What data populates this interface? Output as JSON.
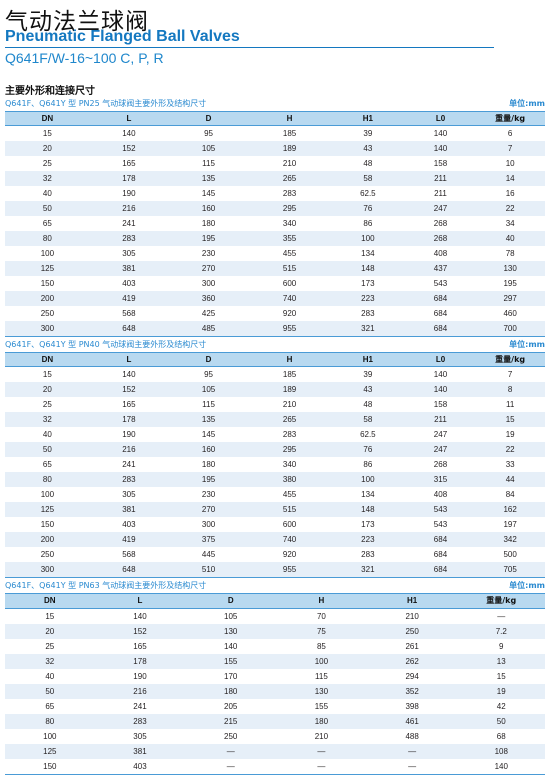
{
  "header": {
    "title_cn": "气动法兰球阀",
    "title_en": "Pneumatic Flanged Ball Valves",
    "model": "Q641F/W-16~100 C, P, R"
  },
  "section_heading": "主要外形和连接尺寸",
  "unit_label": "单位:mm",
  "tables": [
    {
      "caption": "Q641F、Q641Y 型 PN25 气动球阀主要外形及结构尺寸",
      "headers": [
        "DN",
        "L",
        "D",
        "H",
        "H1",
        "L0",
        "重量/kg"
      ],
      "rows": [
        [
          "15",
          "140",
          "95",
          "185",
          "39",
          "140",
          "6"
        ],
        [
          "20",
          "152",
          "105",
          "189",
          "43",
          "140",
          "7"
        ],
        [
          "25",
          "165",
          "115",
          "210",
          "48",
          "158",
          "10"
        ],
        [
          "32",
          "178",
          "135",
          "265",
          "58",
          "211",
          "14"
        ],
        [
          "40",
          "190",
          "145",
          "283",
          "62.5",
          "211",
          "16"
        ],
        [
          "50",
          "216",
          "160",
          "295",
          "76",
          "247",
          "22"
        ],
        [
          "65",
          "241",
          "180",
          "340",
          "86",
          "268",
          "34"
        ],
        [
          "80",
          "283",
          "195",
          "355",
          "100",
          "268",
          "40"
        ],
        [
          "100",
          "305",
          "230",
          "455",
          "134",
          "408",
          "78"
        ],
        [
          "125",
          "381",
          "270",
          "515",
          "148",
          "437",
          "130"
        ],
        [
          "150",
          "403",
          "300",
          "600",
          "173",
          "543",
          "195"
        ],
        [
          "200",
          "419",
          "360",
          "740",
          "223",
          "684",
          "297"
        ],
        [
          "250",
          "568",
          "425",
          "920",
          "283",
          "684",
          "460"
        ],
        [
          "300",
          "648",
          "485",
          "955",
          "321",
          "684",
          "700"
        ]
      ]
    },
    {
      "caption": "Q641F、Q641Y 型 PN40 气动球阀主要外形及结构尺寸",
      "headers": [
        "DN",
        "L",
        "D",
        "H",
        "H1",
        "L0",
        "重量/kg"
      ],
      "rows": [
        [
          "15",
          "140",
          "95",
          "185",
          "39",
          "140",
          "7"
        ],
        [
          "20",
          "152",
          "105",
          "189",
          "43",
          "140",
          "8"
        ],
        [
          "25",
          "165",
          "115",
          "210",
          "48",
          "158",
          "11"
        ],
        [
          "32",
          "178",
          "135",
          "265",
          "58",
          "211",
          "15"
        ],
        [
          "40",
          "190",
          "145",
          "283",
          "62.5",
          "247",
          "19"
        ],
        [
          "50",
          "216",
          "160",
          "295",
          "76",
          "247",
          "22"
        ],
        [
          "65",
          "241",
          "180",
          "340",
          "86",
          "268",
          "33"
        ],
        [
          "80",
          "283",
          "195",
          "380",
          "100",
          "315",
          "44"
        ],
        [
          "100",
          "305",
          "230",
          "455",
          "134",
          "408",
          "84"
        ],
        [
          "125",
          "381",
          "270",
          "515",
          "148",
          "543",
          "162"
        ],
        [
          "150",
          "403",
          "300",
          "600",
          "173",
          "543",
          "197"
        ],
        [
          "200",
          "419",
          "375",
          "740",
          "223",
          "684",
          "342"
        ],
        [
          "250",
          "568",
          "445",
          "920",
          "283",
          "684",
          "500"
        ],
        [
          "300",
          "648",
          "510",
          "955",
          "321",
          "684",
          "705"
        ]
      ]
    },
    {
      "caption": "Q641F、Q641Y 型 PN63 气动球阀主要外形及结构尺寸",
      "headers": [
        "DN",
        "L",
        "D",
        "H",
        "H1",
        "重量/kg"
      ],
      "rows": [
        [
          "15",
          "140",
          "105",
          "70",
          "210",
          "—"
        ],
        [
          "20",
          "152",
          "130",
          "75",
          "250",
          "7.2"
        ],
        [
          "25",
          "165",
          "140",
          "85",
          "261",
          "9"
        ],
        [
          "32",
          "178",
          "155",
          "100",
          "262",
          "13"
        ],
        [
          "40",
          "190",
          "170",
          "115",
          "294",
          "15"
        ],
        [
          "50",
          "216",
          "180",
          "130",
          "352",
          "19"
        ],
        [
          "65",
          "241",
          "205",
          "155",
          "398",
          "42"
        ],
        [
          "80",
          "283",
          "215",
          "180",
          "461",
          "50"
        ],
        [
          "100",
          "305",
          "250",
          "210",
          "488",
          "68"
        ],
        [
          "125",
          "381",
          "—",
          "—",
          "—",
          "108"
        ],
        [
          "150",
          "403",
          "—",
          "—",
          "—",
          "140"
        ]
      ]
    }
  ]
}
